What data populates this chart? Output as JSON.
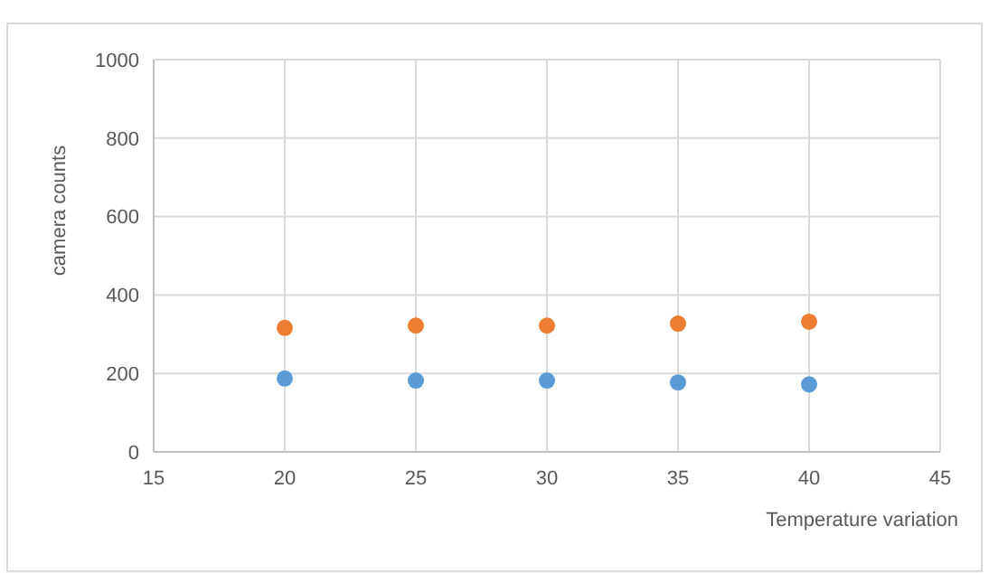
{
  "chart_data": {
    "type": "scatter",
    "xlabel": "Temperature variation",
    "ylabel": "camera counts",
    "x": [
      20,
      25,
      30,
      35,
      40
    ],
    "series": [
      {
        "color": "#ed7d31",
        "values": [
          316,
          322,
          322,
          327,
          332
        ]
      },
      {
        "color": "#5b9bd5",
        "values": [
          187,
          182,
          182,
          177,
          172
        ]
      }
    ],
    "xlim": [
      15,
      45
    ],
    "xticks": [
      15,
      20,
      25,
      30,
      35,
      40,
      45
    ],
    "ylim": [
      0,
      1000
    ],
    "yticks": [
      0,
      200,
      400,
      600,
      800,
      1000
    ],
    "grid": true,
    "marker": "circle"
  }
}
